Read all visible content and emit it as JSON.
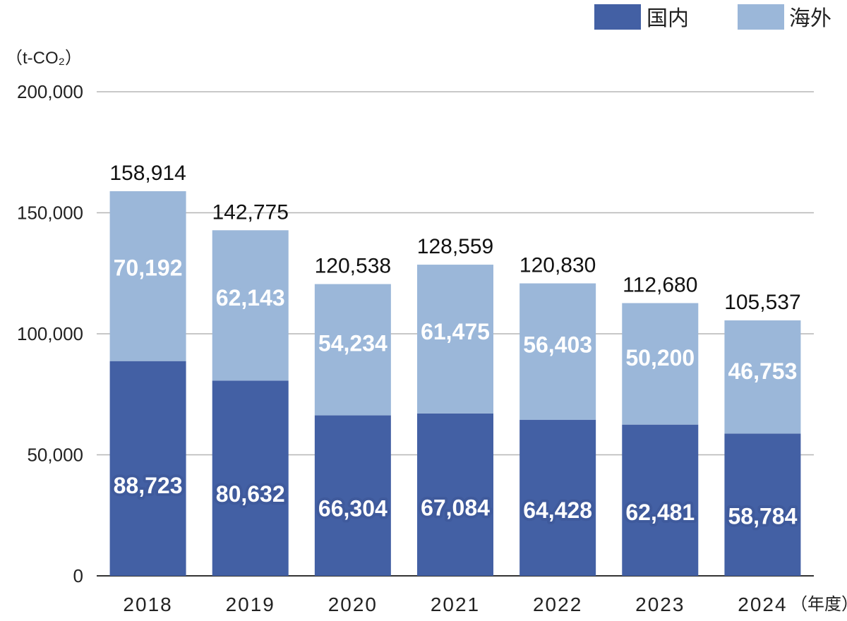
{
  "chart_data": {
    "type": "bar",
    "stacked": true,
    "unit": "（t-CO₂）",
    "x_unit": "（年度）",
    "categories": [
      "2018",
      "2019",
      "2020",
      "2021",
      "2022",
      "2023",
      "2024"
    ],
    "series": [
      {
        "name": "国内",
        "color": "#4360a4",
        "values": [
          88723,
          80632,
          66304,
          67084,
          64428,
          62481,
          58784
        ]
      },
      {
        "name": "海外",
        "color": "#9bb7d9",
        "values": [
          70192,
          62143,
          54234,
          61475,
          56403,
          50200,
          46753
        ]
      }
    ],
    "totals": [
      158914,
      142775,
      120538,
      128559,
      120830,
      112680,
      105537
    ],
    "ylim": [
      0,
      200000
    ],
    "yticks": [
      0,
      50000,
      100000,
      150000,
      200000
    ],
    "ytick_labels": [
      "0",
      "50,000",
      "100,000",
      "150,000",
      "200,000"
    ],
    "grid": true,
    "legend_position": "top-right"
  }
}
